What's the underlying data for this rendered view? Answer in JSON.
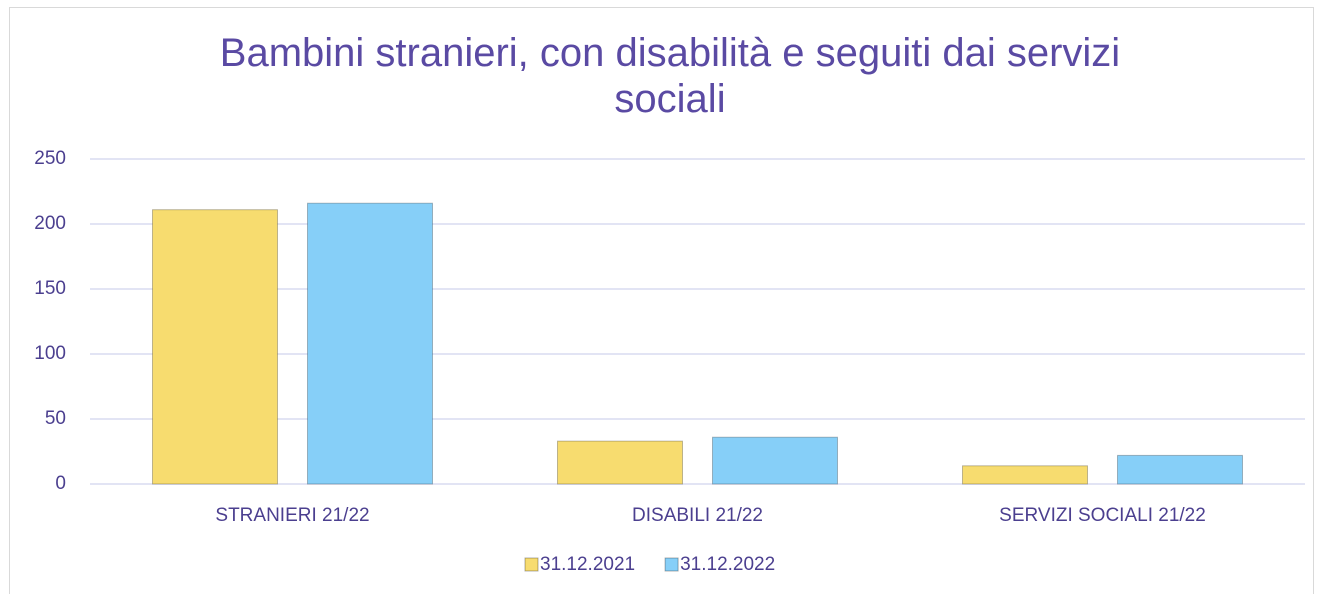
{
  "chart_data": {
    "type": "bar",
    "title": "Bambini stranieri, con disabilità e seguiti dai servizi sociali",
    "categories": [
      "STRANIERI 21/22",
      "DISABILI 21/22",
      "SERVIZI SOCIALI 21/22"
    ],
    "series": [
      {
        "name": "31.12.2021",
        "color": "#f7dc6f",
        "values": [
          211,
          33,
          14
        ]
      },
      {
        "name": "31.12.2022",
        "color": "#86cff8",
        "values": [
          216,
          36,
          22
        ]
      }
    ],
    "ylim": [
      0,
      250
    ],
    "yticks": [
      0,
      50,
      100,
      150,
      200,
      250
    ],
    "grid": true
  }
}
